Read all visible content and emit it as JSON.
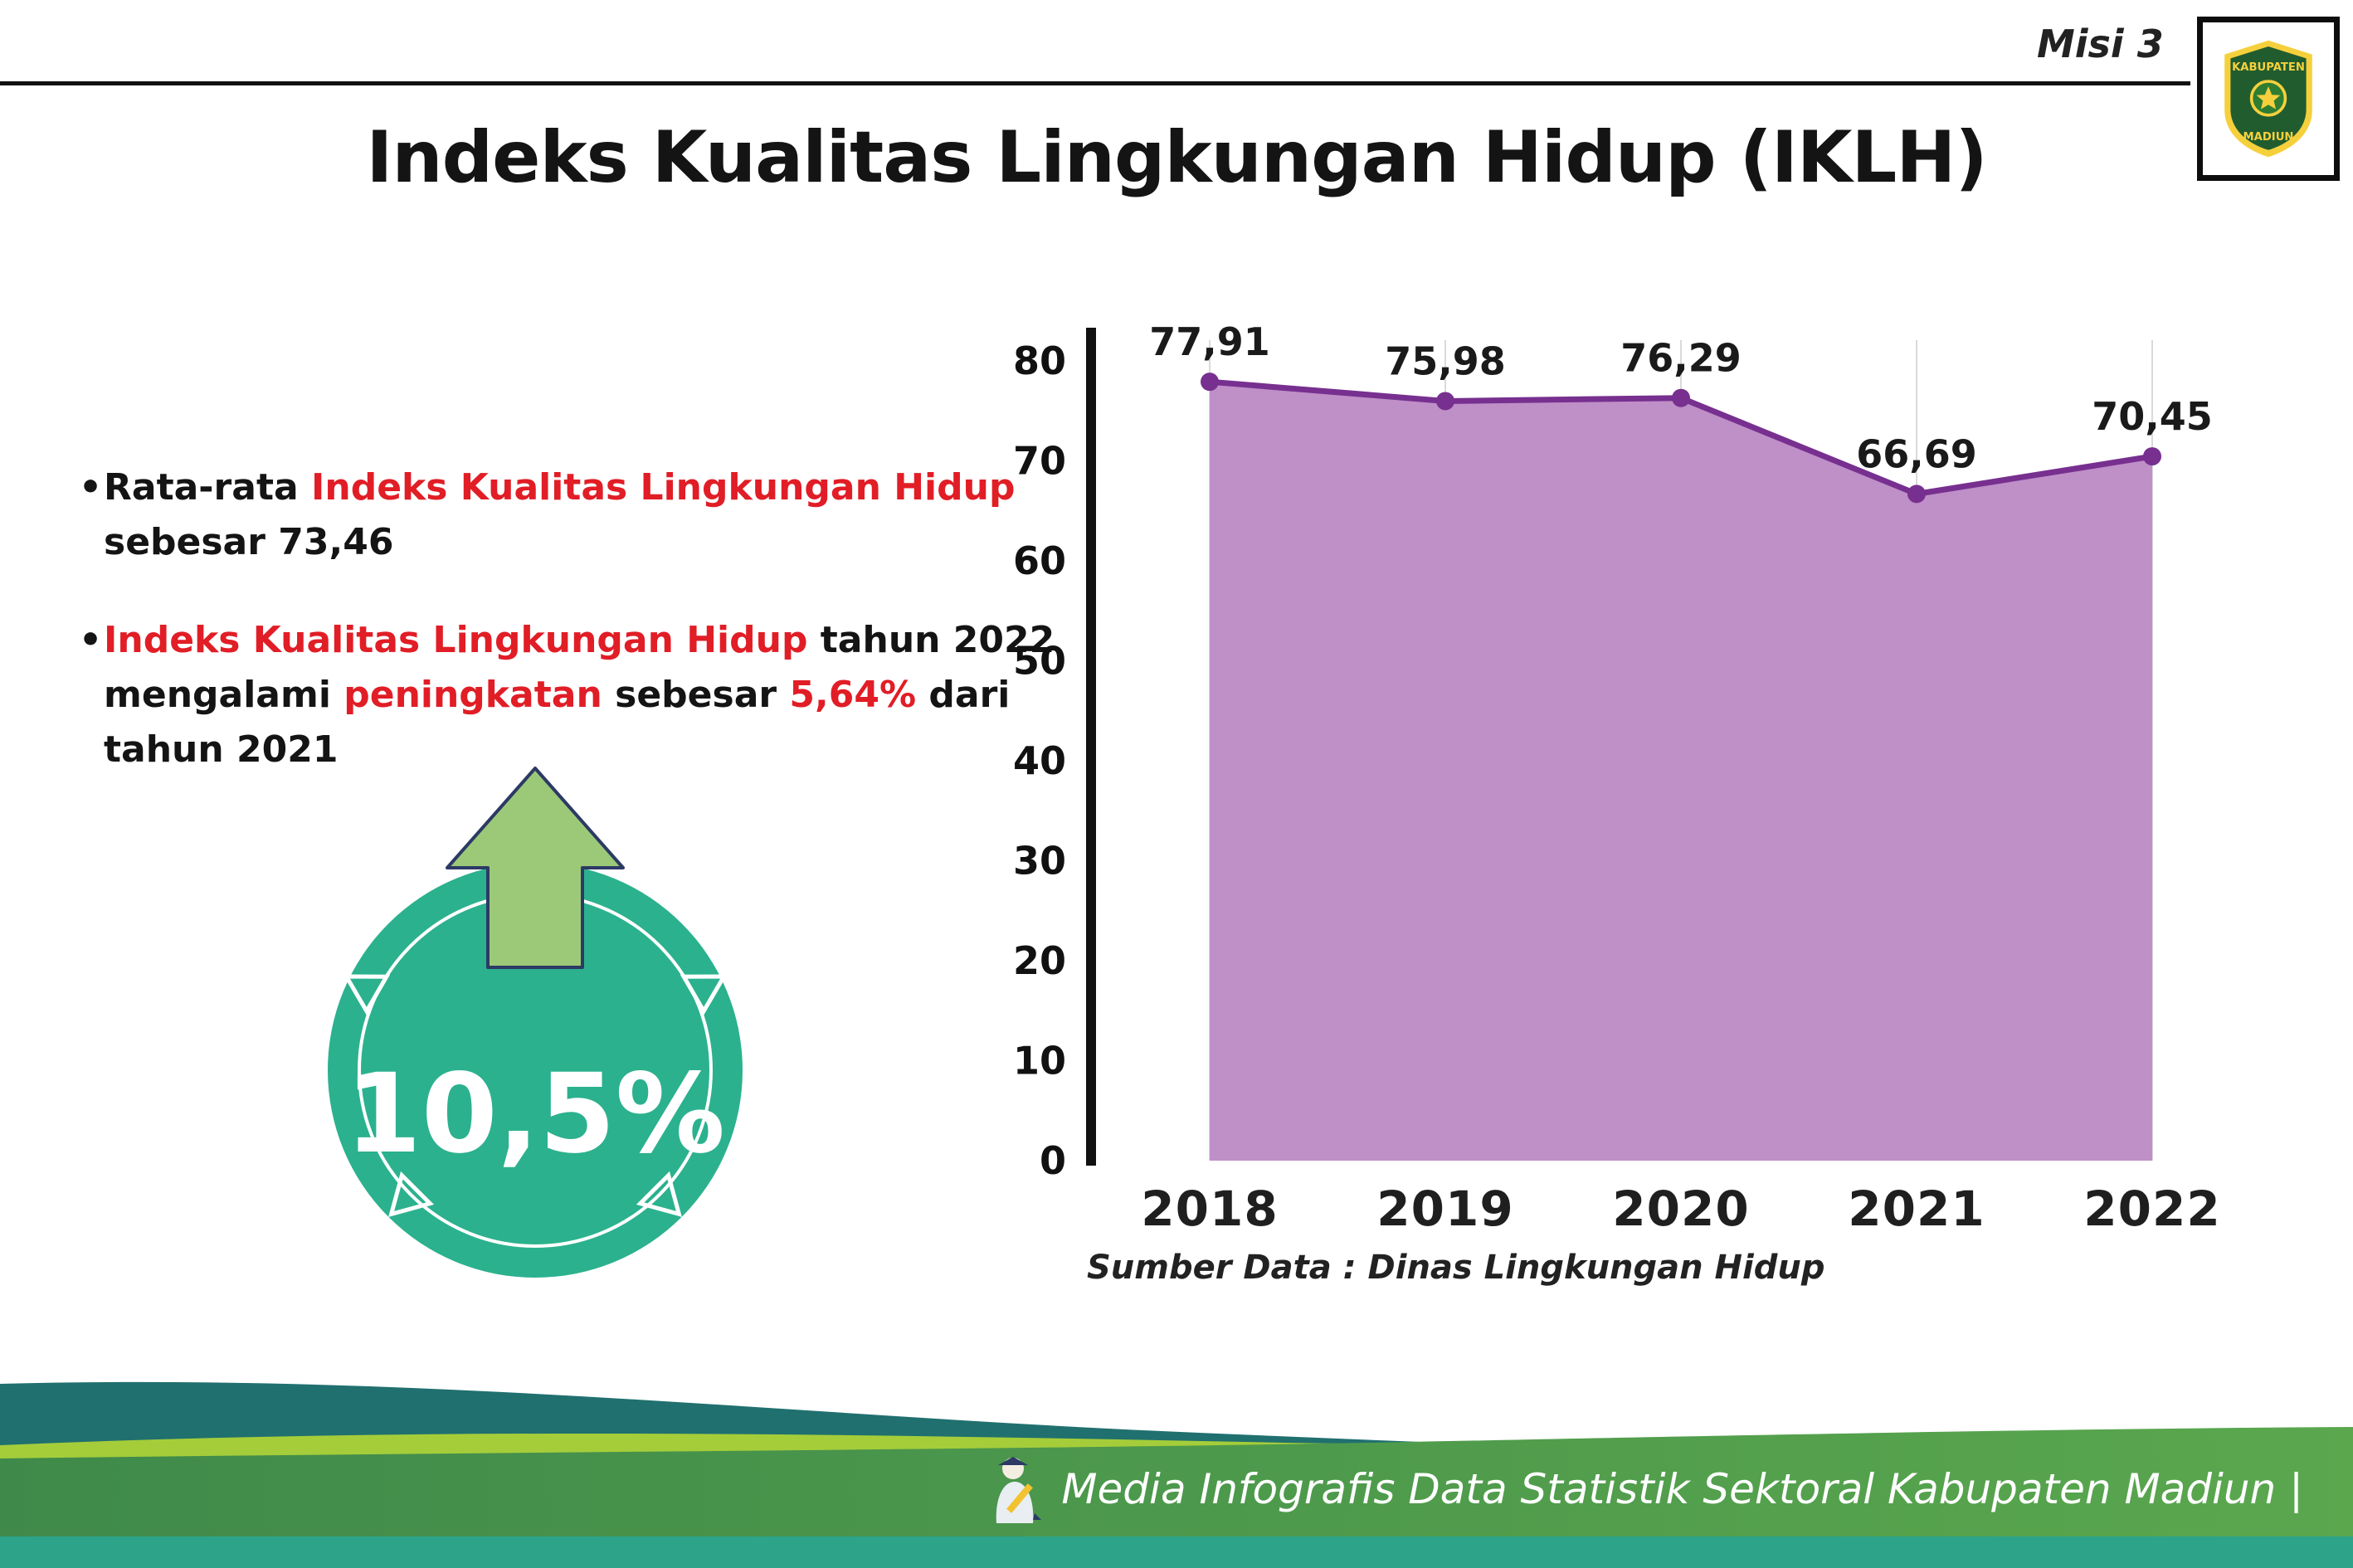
{
  "header": {
    "misi": "Misi 3",
    "title": "Indeks Kualitas Lingkungan Hidup (IKLH)"
  },
  "logo": {
    "top_text": "KABUPATEN",
    "bottom_text": "MADIUN"
  },
  "bullets": [
    {
      "lines": [
        [
          {
            "t": "Rata-rata ",
            "red": false
          },
          {
            "t": "Indeks Kualitas Lingkungan Hidup",
            "red": true
          }
        ],
        [
          {
            "t": "sebesar 73,46",
            "red": false
          }
        ]
      ]
    },
    {
      "lines": [
        [
          {
            "t": "Indeks Kualitas Lingkungan Hidup",
            "red": true
          },
          {
            "t": " tahun 2022",
            "red": false
          }
        ],
        [
          {
            "t": "mengalami ",
            "red": false
          },
          {
            "t": "peningkatan",
            "red": true
          },
          {
            "t": " sebesar ",
            "red": false
          },
          {
            "t": "5,64%",
            "red": true
          },
          {
            "t": " dari",
            "red": false
          }
        ],
        [
          {
            "t": "tahun 2021",
            "red": false
          }
        ]
      ]
    }
  ],
  "badge": {
    "value": "10,5%"
  },
  "chart_data": {
    "type": "area",
    "title": "",
    "categories": [
      "2018",
      "2019",
      "2020",
      "2021",
      "2022"
    ],
    "values": [
      77.91,
      75.98,
      76.29,
      66.69,
      70.45
    ],
    "point_labels": [
      "77,91",
      "75,98",
      "76,29",
      "66,69",
      "70,45"
    ],
    "ylim": [
      0,
      80
    ],
    "yticks": [
      0,
      10,
      20,
      30,
      40,
      50,
      60,
      70,
      80
    ],
    "grid": "vertical-light",
    "legend": "none",
    "fill_color": "#bf8fc8",
    "line_color": "#77308f",
    "source": "Sumber Data : Dinas Lingkungan Hidup"
  },
  "footer": {
    "text": "Media Infografis Data Statistik Sektoral Kabupaten Madiun |"
  },
  "colors": {
    "accent_red": "#e11d26",
    "badge_teal": "#2bb18e",
    "arrow_green": "#9cc978",
    "footer_green_dark": "#3f8a4a",
    "footer_green_light": "#5aa74e",
    "footer_teal": "#20706f",
    "footer_lime": "#a5cd3a",
    "footer_strip": "#2da48a"
  }
}
